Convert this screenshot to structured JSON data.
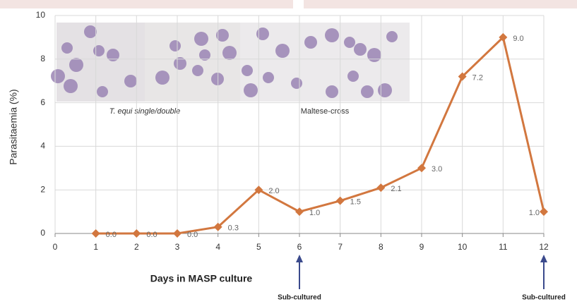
{
  "chart_data": {
    "type": "line",
    "y_label": "Parasitaemia (%)",
    "x_label": "Days in MASP culture",
    "x": [
      1,
      2,
      3,
      4,
      5,
      6,
      7,
      8,
      9,
      10,
      11,
      12
    ],
    "series": [
      {
        "color": "#d2773f",
        "values": [
          0,
          0,
          0,
          0.3,
          2,
          1,
          1.5,
          2.1,
          3,
          7.2,
          9,
          1
        ],
        "value_labels": [
          "0.0",
          "0.0",
          "0.0",
          "0.3",
          "2.0",
          "1.0",
          "1.5",
          "2.1",
          "3.0",
          "7.2",
          "9.0",
          "1.0"
        ]
      }
    ],
    "xlim": [
      0,
      12
    ],
    "xticks": [
      0,
      1,
      2,
      3,
      4,
      5,
      6,
      7,
      8,
      9,
      10,
      11,
      12
    ],
    "ylim": [
      0,
      10
    ],
    "yticks": [
      0,
      2,
      4,
      6,
      8,
      10
    ],
    "grid": true,
    "annotations": [
      {
        "text": "Sub-cultured",
        "x": 6
      },
      {
        "text": "Sub-cultured",
        "x": 12
      }
    ],
    "image_captions": [
      "T. equi single/double",
      "Maltese-cross"
    ]
  }
}
